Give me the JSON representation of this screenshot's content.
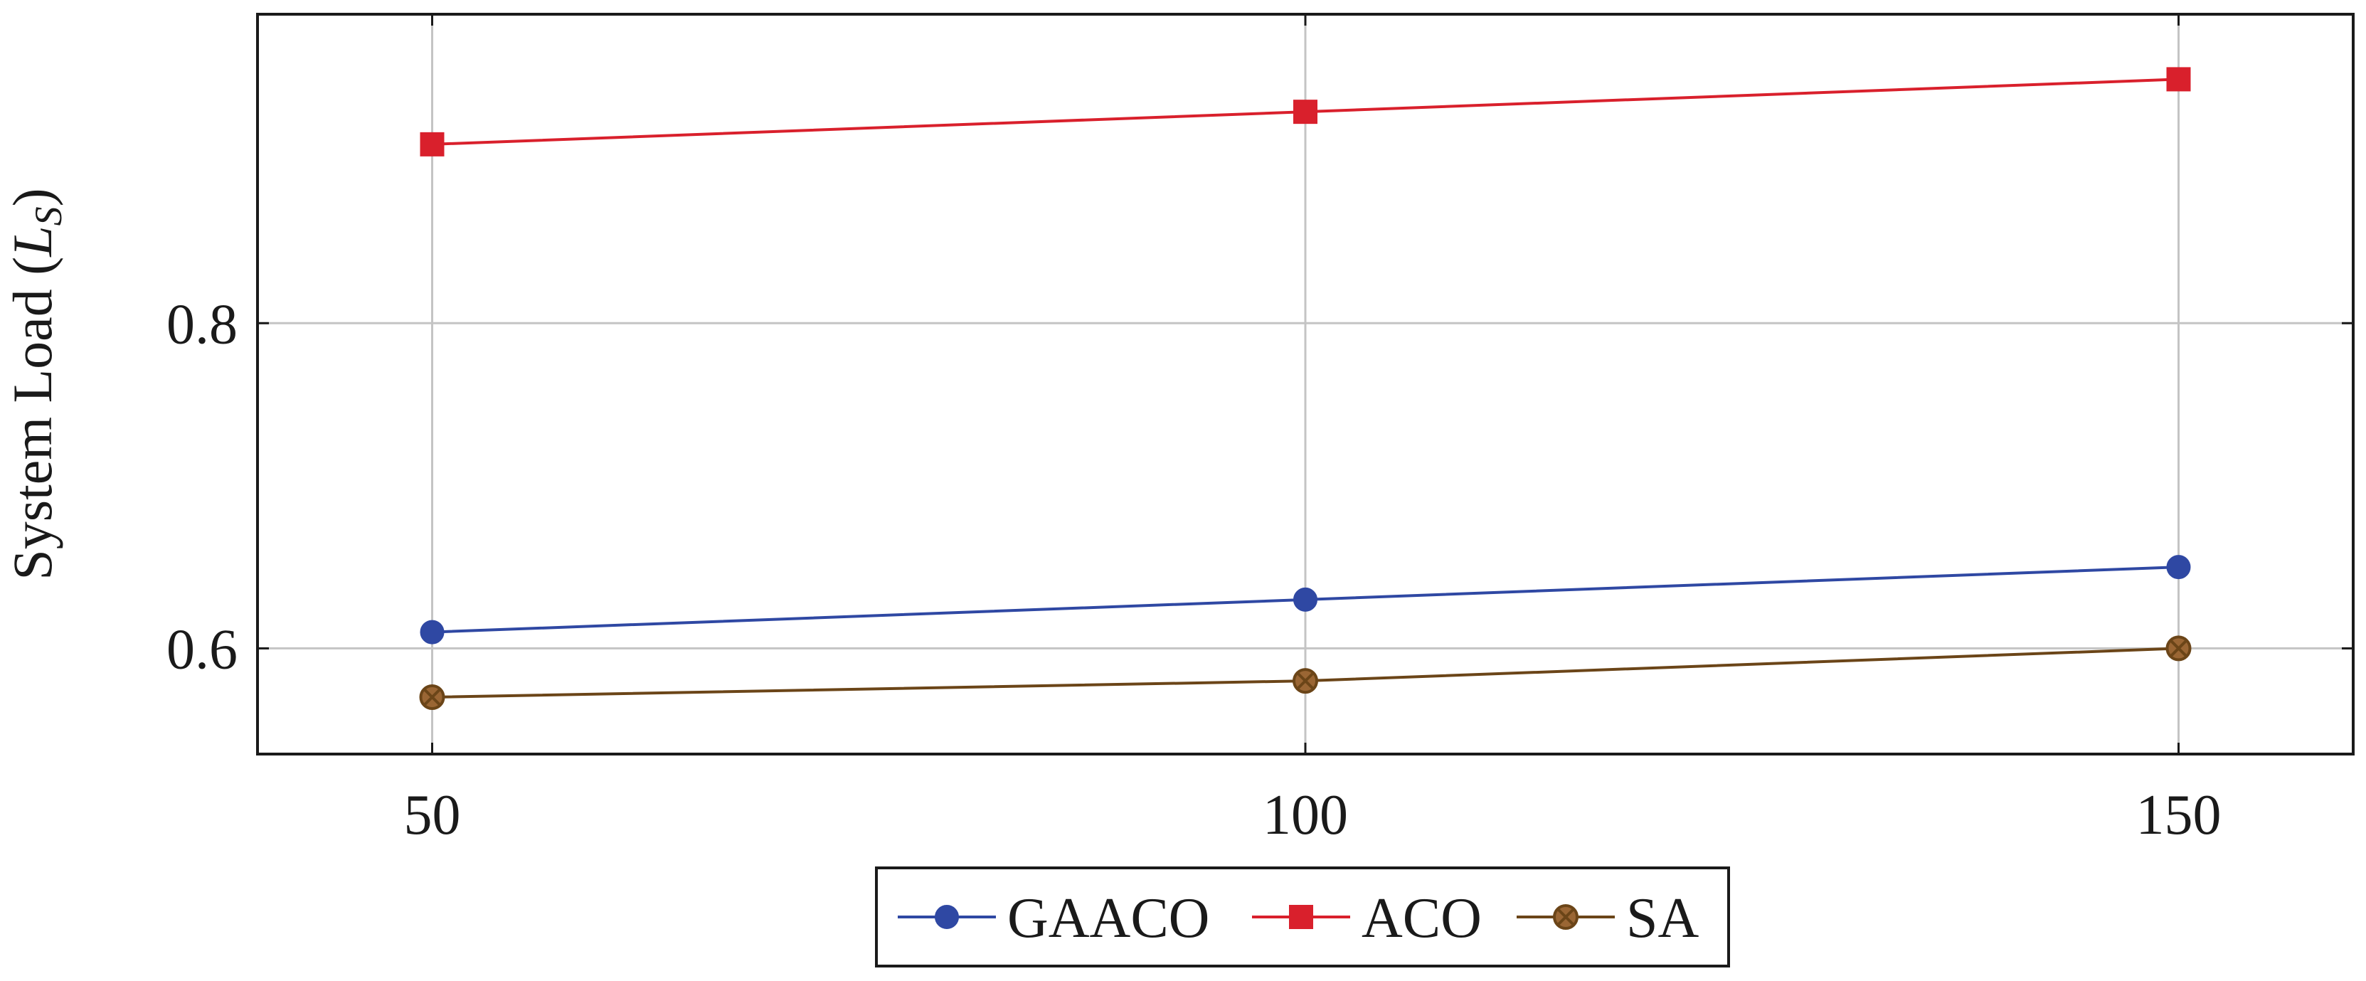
{
  "chart_data": {
    "type": "line",
    "title": "",
    "xlabel": "",
    "ylabel": "System Load (",
    "ylabel_symbol": "L",
    "ylabel_subscript": "S",
    "ylabel_close": ")",
    "x": [
      50,
      100,
      150
    ],
    "x_tick_labels": [
      "50",
      "100",
      "150"
    ],
    "xlim": [
      40,
      160
    ],
    "ylim": [
      0.535,
      0.99
    ],
    "y_ticks": [
      0.6,
      0.8
    ],
    "y_tick_labels": [
      "0.6",
      "0.8"
    ],
    "grid": true,
    "legend_position": "bottom-center",
    "series": [
      {
        "name": "GAACO",
        "values": [
          0.61,
          0.63,
          0.65
        ],
        "color": "#2f48a3",
        "marker": "circle"
      },
      {
        "name": "ACO",
        "values": [
          0.91,
          0.93,
          0.95
        ],
        "color": "#d9202c",
        "marker": "square"
      },
      {
        "name": "SA",
        "values": [
          0.57,
          0.58,
          0.6
        ],
        "color": "#6b4518",
        "fill": "#9a6634",
        "marker": "crossed-circle"
      }
    ]
  }
}
